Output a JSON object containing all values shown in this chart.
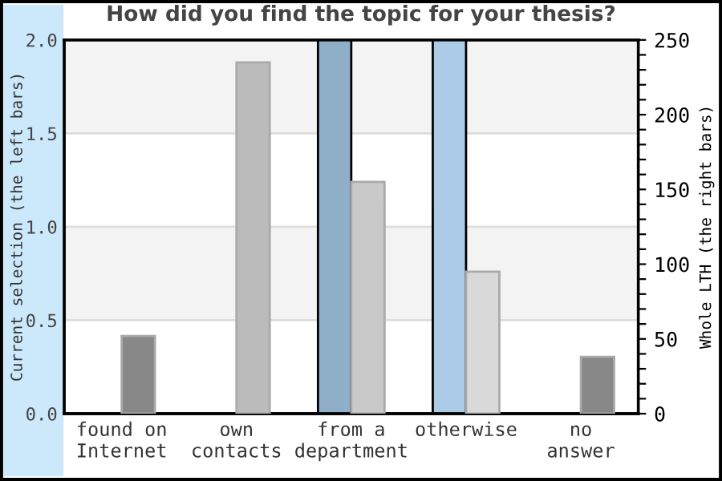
{
  "chart_data": {
    "type": "bar",
    "title": "How did you find the topic for your thesis?",
    "ylabel": "Current selection (the left bars)",
    "y2label": "Whole LTH (the right bars)",
    "categories": [
      "found on\nInternet",
      "own\ncontacts",
      "from a\ndepartment",
      "otherwise",
      "no\nanswer"
    ],
    "series": [
      {
        "colors": [
          null,
          null,
          "#8fafc9",
          "#abcbe6",
          null
        ],
        "values": [
          null,
          null,
          2,
          2,
          null
        ]
      },
      {
        "axis": "y2",
        "colors": [
          "#888888",
          "#bbbbbb",
          "#c9c9c9",
          "#d9d9d9",
          "#888888"
        ],
        "values": [
          52,
          235,
          155,
          95,
          38
        ]
      }
    ],
    "ylim": [
      0,
      2
    ],
    "yticks": [
      {
        "value": 0,
        "label": "0.0"
      },
      0.5,
      {
        "value": 1,
        "label": "1.0"
      },
      1.5,
      {
        "value": 2,
        "label": "2.0"
      }
    ],
    "y2lim": [
      0,
      250
    ],
    "y2ticks": [
      0,
      {
        "value": 10,
        "label": null
      },
      {
        "value": 20,
        "label": null
      },
      {
        "value": 30,
        "label": null
      },
      {
        "value": 40,
        "label": null
      },
      50,
      {
        "value": 60,
        "label": null
      },
      {
        "value": 70,
        "label": null
      },
      {
        "value": 80,
        "label": null
      },
      {
        "value": 90,
        "label": null
      },
      100,
      {
        "value": 110,
        "label": null
      },
      {
        "value": 120,
        "label": null
      },
      {
        "value": 130,
        "label": null
      },
      {
        "value": 140,
        "label": null
      },
      150,
      {
        "value": 160,
        "label": null
      },
      {
        "value": 170,
        "label": null
      },
      {
        "value": 180,
        "label": null
      },
      {
        "value": 190,
        "label": null
      },
      200,
      {
        "value": 210,
        "label": null
      },
      {
        "value": 220,
        "label": null
      },
      {
        "value": 230,
        "label": null
      },
      {
        "value": 240,
        "label": null
      },
      250
    ],
    "bands": [
      {
        "axis": "y",
        "from": 0.5,
        "to": 1.0,
        "color": "#f3f3f3"
      },
      {
        "axis": "y",
        "from": 1.5,
        "to": 2.0,
        "color": "#f3f3f3"
      }
    ],
    "grid": "y",
    "legend": false
  }
}
